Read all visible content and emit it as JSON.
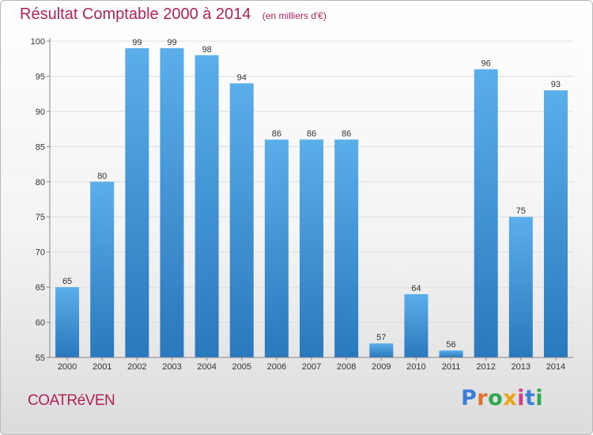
{
  "title": "Résultat Comptable 2000 à 2014",
  "unit": "(en milliers d'€)",
  "commune": "COATRéVEN",
  "brand": {
    "letters": [
      "P",
      "r",
      "o",
      "x",
      "i",
      "t",
      "i"
    ],
    "colors": [
      "#3a7fd5",
      "#e0702a",
      "#2fa84f",
      "#e8a317",
      "#d23c8c",
      "#3a7fd5",
      "#2fa84f"
    ]
  },
  "colors": {
    "bar_light": "#5aaeea",
    "bar_dark": "#2a78bd",
    "grid": "#dddddd",
    "axis": "#888888",
    "title": "#b0225a"
  },
  "chart_data": {
    "type": "bar",
    "categories": [
      "2000",
      "2001",
      "2002",
      "2003",
      "2004",
      "2005",
      "2006",
      "2007",
      "2008",
      "2009",
      "2010",
      "2011",
      "2012",
      "2013",
      "2014"
    ],
    "values": [
      65,
      80,
      99,
      99,
      98,
      94,
      86,
      86,
      86,
      57,
      64,
      56,
      96,
      75,
      93
    ],
    "ylim": [
      55,
      100
    ],
    "yticks": [
      55,
      60,
      65,
      70,
      75,
      80,
      85,
      90,
      95,
      100
    ],
    "grid": true,
    "data_labels": true
  }
}
